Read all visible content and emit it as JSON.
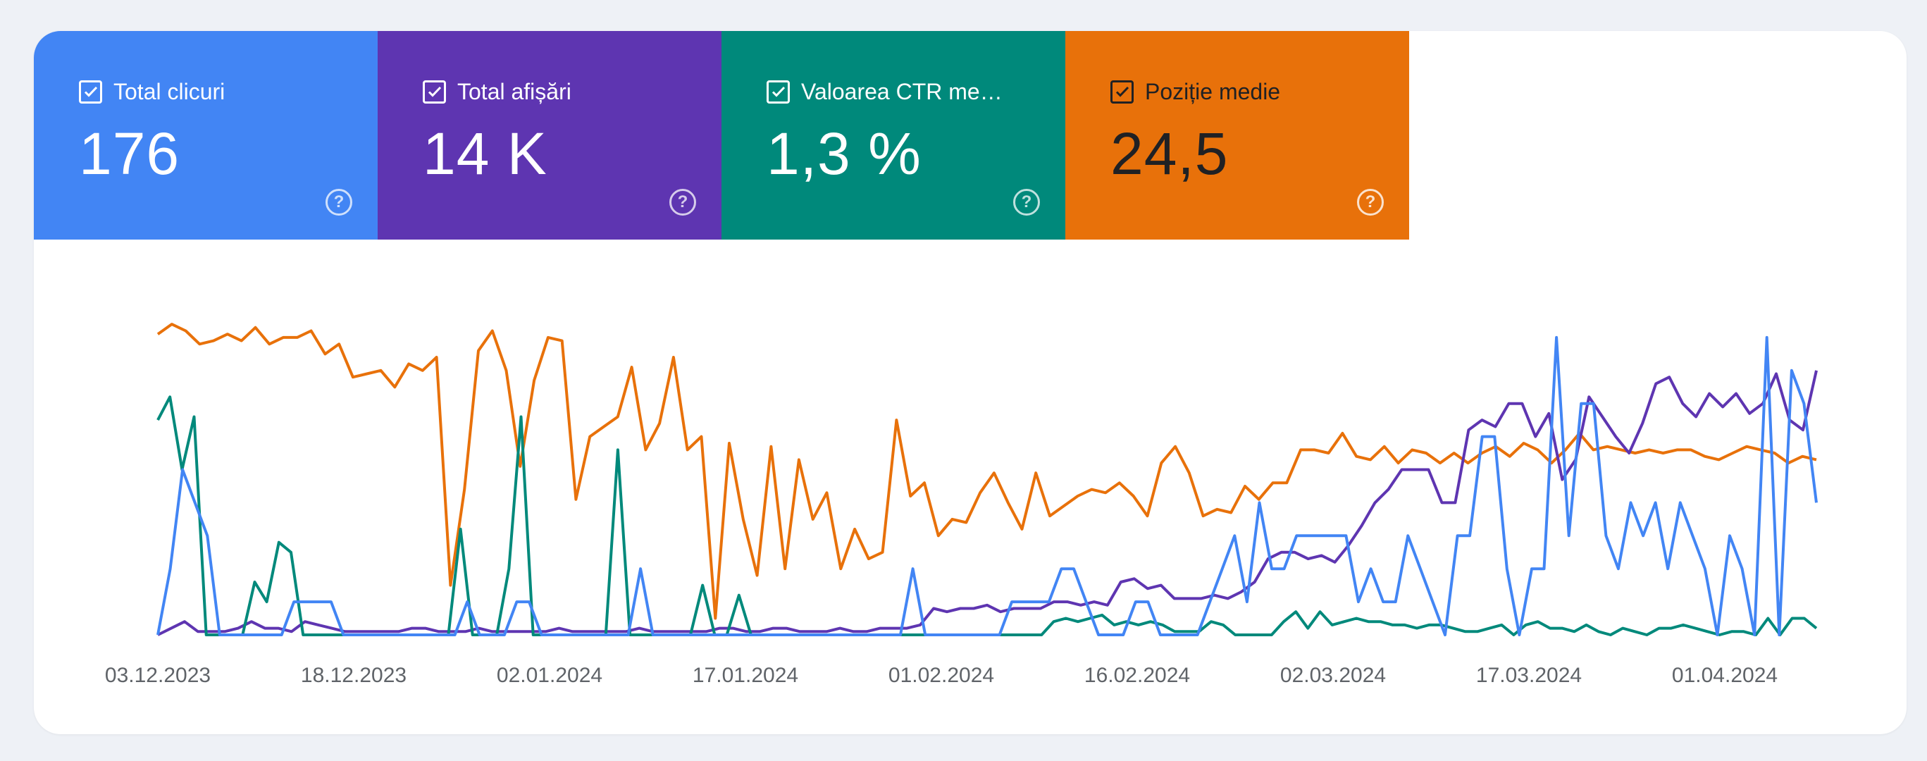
{
  "metrics": [
    {
      "label": "Total clicuri",
      "value": "176",
      "color": "#4285f4",
      "checked": true
    },
    {
      "label": "Total afișări",
      "value": "14 K",
      "color": "#5e35b1",
      "checked": true
    },
    {
      "label": "Valoarea CTR me…",
      "value": "1,3 %",
      "color": "#00897b",
      "checked": true
    },
    {
      "label": "Poziție medie",
      "value": "24,5",
      "color": "#e8710a",
      "checked": true
    }
  ],
  "help_icon": "question-circle-icon",
  "checkbox_icon": "check-icon",
  "chart_data": {
    "type": "line",
    "x_start": "03.12.2023",
    "x_ticks": [
      "03.12.2023",
      "18.12.2023",
      "02.01.2024",
      "17.01.2024",
      "01.02.2024",
      "16.02.2024",
      "02.03.2024",
      "17.03.2024",
      "01.04.2024"
    ],
    "x_end": "10.04.2024",
    "grid": false,
    "legend": "none",
    "series": [
      {
        "color": "#e8710a",
        "values": [
          91,
          94,
          92,
          88,
          89,
          91,
          89,
          93,
          88,
          90,
          90,
          92,
          85,
          88,
          78,
          79,
          80,
          75,
          82,
          80,
          84,
          15,
          44,
          86,
          92,
          80,
          51,
          77,
          90,
          89,
          41,
          60,
          63,
          66,
          81,
          56,
          64,
          84,
          56,
          60,
          5,
          58,
          35,
          18,
          57,
          20,
          53,
          35,
          43,
          20,
          32,
          23,
          25,
          65,
          42,
          46,
          30,
          35,
          34,
          43,
          49,
          40,
          32,
          49,
          36,
          39,
          42,
          44,
          43,
          46,
          42,
          36,
          52,
          57,
          49,
          36,
          38,
          37,
          45,
          41,
          46,
          46,
          56,
          56,
          55,
          61,
          54,
          53,
          57,
          52,
          56,
          55,
          52,
          55,
          52,
          55,
          57,
          54,
          58,
          56,
          52,
          56,
          61,
          56,
          57,
          56,
          55,
          56,
          55,
          56,
          56,
          54,
          53,
          55,
          57,
          56,
          55,
          52,
          54,
          53
        ]
      },
      {
        "color": "#5e35b1",
        "values": [
          0,
          2,
          4,
          1,
          1,
          1,
          2,
          4,
          2,
          2,
          1,
          4,
          3,
          2,
          1,
          1,
          1,
          1,
          1,
          2,
          2,
          1,
          1,
          1,
          2,
          1,
          1,
          1,
          1,
          1,
          2,
          1,
          1,
          1,
          1,
          1,
          2,
          1,
          1,
          1,
          1,
          1,
          2,
          2,
          1,
          1,
          2,
          2,
          1,
          1,
          1,
          2,
          1,
          1,
          2,
          2,
          2,
          3,
          8,
          7,
          8,
          8,
          9,
          7,
          8,
          8,
          8,
          10,
          10,
          9,
          10,
          9,
          16,
          17,
          14,
          15,
          11,
          11,
          11,
          12,
          11,
          13,
          16,
          23,
          25,
          25,
          23,
          24,
          22,
          27,
          33,
          40,
          44,
          50,
          50,
          50,
          40,
          40,
          62,
          65,
          63,
          70,
          70,
          60,
          67,
          47,
          53,
          72,
          66,
          60,
          55,
          64,
          76,
          78,
          70,
          66,
          73,
          69,
          73,
          67,
          70,
          79,
          65,
          62,
          80
        ]
      },
      {
        "color": "#00897b",
        "values": [
          65,
          72,
          50,
          66,
          0,
          0,
          0,
          0,
          16,
          10,
          28,
          25,
          0,
          0,
          0,
          0,
          0,
          0,
          0,
          0,
          0,
          0,
          0,
          0,
          0,
          32,
          0,
          0,
          0,
          20,
          66,
          0,
          0,
          0,
          0,
          0,
          0,
          0,
          56,
          0,
          0,
          0,
          0,
          0,
          0,
          15,
          0,
          0,
          12,
          0,
          0,
          0,
          0,
          0,
          0,
          0,
          0,
          0,
          0,
          0,
          0,
          0,
          0,
          0,
          0,
          0,
          0,
          0,
          0,
          0,
          0,
          0,
          0,
          0,
          4,
          5,
          4,
          5,
          6,
          3,
          4,
          3,
          4,
          3,
          1,
          1,
          1,
          4,
          3,
          0,
          0,
          0,
          0,
          4,
          7,
          2,
          7,
          3,
          4,
          5,
          4,
          4,
          3,
          3,
          2,
          3,
          3,
          2,
          1,
          1,
          2,
          3,
          0,
          3,
          4,
          2,
          2,
          1,
          3,
          1,
          0,
          2,
          1,
          0,
          2,
          2,
          3,
          2,
          1,
          0,
          1,
          1,
          0,
          5,
          0,
          5,
          5,
          2
        ]
      },
      {
        "color": "#4285f4",
        "values": [
          0,
          20,
          50,
          40,
          30,
          0,
          0,
          0,
          0,
          0,
          0,
          10,
          10,
          10,
          10,
          0,
          0,
          0,
          0,
          0,
          0,
          0,
          0,
          0,
          0,
          10,
          0,
          0,
          0,
          10,
          10,
          0,
          0,
          0,
          0,
          0,
          0,
          0,
          0,
          20,
          0,
          0,
          0,
          0,
          0,
          0,
          0,
          0,
          0,
          0,
          0,
          0,
          0,
          0,
          0,
          0,
          0,
          0,
          0,
          0,
          0,
          20,
          0,
          0,
          0,
          0,
          0,
          0,
          0,
          10,
          10,
          10,
          10,
          20,
          20,
          10,
          0,
          0,
          0,
          10,
          10,
          0,
          0,
          0,
          0,
          10,
          20,
          30,
          10,
          40,
          20,
          20,
          30,
          30,
          30,
          30,
          30,
          10,
          20,
          10,
          10,
          30,
          20,
          10,
          0,
          30,
          30,
          60,
          60,
          20,
          0,
          20,
          20,
          90,
          30,
          70,
          70,
          30,
          20,
          40,
          30,
          40,
          20,
          40,
          30,
          20,
          0,
          30,
          20,
          0,
          90,
          0,
          80,
          70,
          40
        ]
      }
    ],
    "y_axis_shown": false
  }
}
